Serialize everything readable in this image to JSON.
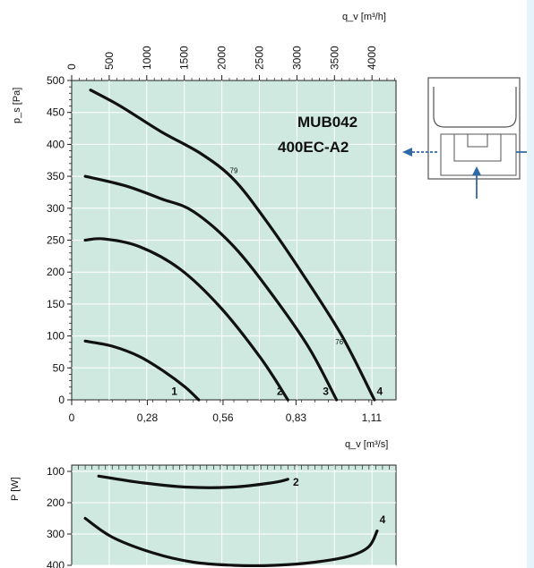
{
  "model": {
    "line1": "MUB042",
    "line2": "400EC-A2"
  },
  "colors": {
    "plot_bg": "#cfe9e1",
    "grid": "#ffffff",
    "curve": "#111111",
    "arrow_blue": "#2f6aa6",
    "diagram_stroke": "#555555"
  },
  "chart_data": [
    {
      "type": "line",
      "xlabel": "q_v [m³/s]",
      "ylabel": "p_s [Pa]",
      "xlim": [
        0,
        1.2
      ],
      "ylim": [
        0,
        500
      ],
      "x_ticks": [
        0,
        0.28,
        0.56,
        0.83,
        1.11
      ],
      "x_tick_labels": [
        "0",
        "0,28",
        "0,56",
        "0,83",
        "1,11"
      ],
      "y_ticks": [
        0,
        50,
        100,
        150,
        200,
        250,
        300,
        350,
        400,
        450,
        500
      ],
      "top_axis": {
        "label": "q_v [m³/h]",
        "ticks": [
          0,
          500,
          1000,
          1500,
          2000,
          2500,
          3000,
          3500,
          4000
        ],
        "tick_labels": [
          "0",
          "500",
          "1000",
          "1500",
          "2000",
          "2500",
          "3000",
          "3500",
          "4000"
        ]
      },
      "grid": true,
      "series": [
        {
          "name": "1",
          "x": [
            0.05,
            0.15,
            0.25,
            0.34,
            0.42,
            0.47
          ],
          "y": [
            92,
            84,
            68,
            45,
            20,
            0
          ]
        },
        {
          "name": "2",
          "x": [
            0.05,
            0.12,
            0.25,
            0.4,
            0.55,
            0.7,
            0.8
          ],
          "y": [
            250,
            252,
            240,
            205,
            145,
            65,
            0
          ]
        },
        {
          "name": "3",
          "x": [
            0.05,
            0.2,
            0.33,
            0.45,
            0.6,
            0.75,
            0.88,
            0.98
          ],
          "y": [
            350,
            335,
            315,
            295,
            240,
            160,
            80,
            0
          ]
        },
        {
          "name": "4",
          "x": [
            0.07,
            0.18,
            0.33,
            0.48,
            0.6,
            0.72,
            0.85,
            1.0,
            1.12
          ],
          "y": [
            485,
            460,
            420,
            385,
            345,
            280,
            200,
            100,
            0
          ]
        }
      ],
      "annotations": [
        {
          "text": "1",
          "x": 0.38,
          "y": 8
        },
        {
          "text": "2",
          "x": 0.77,
          "y": 8
        },
        {
          "text": "3",
          "x": 0.94,
          "y": 8
        },
        {
          "text": "4",
          "x": 1.14,
          "y": 8
        },
        {
          "text": "79",
          "x": 0.6,
          "y": 355
        },
        {
          "text": "76",
          "x": 0.99,
          "y": 87
        }
      ]
    },
    {
      "type": "line",
      "ylabel": "P [W]",
      "xlim": [
        0,
        1.2
      ],
      "ylim": [
        400,
        100
      ],
      "y_ticks": [
        100,
        200,
        300,
        400
      ],
      "grid": true,
      "series": [
        {
          "name": "2",
          "x": [
            0.1,
            0.25,
            0.42,
            0.6,
            0.75,
            0.8
          ],
          "y": [
            115,
            135,
            150,
            150,
            135,
            125
          ]
        },
        {
          "name": "4",
          "x": [
            0.05,
            0.15,
            0.3,
            0.45,
            0.6,
            0.75,
            0.9,
            1.03,
            1.1,
            1.13
          ],
          "y": [
            250,
            310,
            360,
            390,
            400,
            400,
            390,
            370,
            340,
            290
          ]
        }
      ],
      "annotations": [
        {
          "text": "2",
          "x": 0.83,
          "y": 145
        },
        {
          "text": "4",
          "x": 1.15,
          "y": 265
        }
      ]
    }
  ]
}
